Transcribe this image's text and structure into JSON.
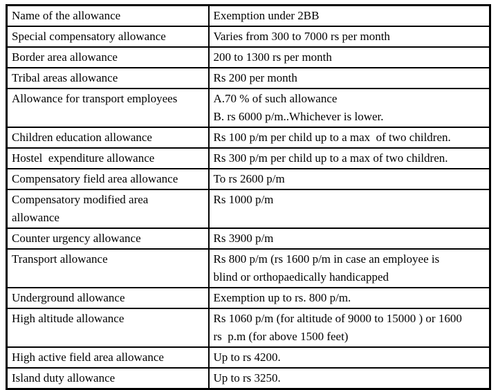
{
  "title": "Allowance exemption table",
  "colors": {
    "background": "#ffffff",
    "border": "#000000",
    "text": "#000000"
  },
  "table": {
    "headers": [
      "Name of the allowance",
      "Exemption under 2BB"
    ],
    "rows": [
      {
        "name": "Special compensatory allowance",
        "exemption": "Varies from 300 to 7000 rs per month"
      },
      {
        "name": "Border area allowance",
        "exemption": "200 to 1300 rs per month"
      },
      {
        "name": "Tribal areas allowance",
        "exemption": "Rs 200 per month"
      },
      {
        "name": "Allowance for transport employees",
        "exemption": "A.70 % of such allowance\nB. rs 6000 p/m..Whichever is lower."
      },
      {
        "name": "Children education allowance",
        "exemption": "Rs 100 p/m per child up to a max  of two children."
      },
      {
        "name": "Hostel  expenditure allowance",
        "exemption": "Rs 300 p/m per child up to a max of two children."
      },
      {
        "name": "Compensatory field area allowance",
        "exemption": "To rs 2600 p/m"
      },
      {
        "name": "Compensatory modified area\nallowance",
        "exemption": "Rs 1000 p/m"
      },
      {
        "name": "Counter urgency allowance",
        "exemption": "Rs 3900 p/m"
      },
      {
        "name": "Transport allowance",
        "exemption": "Rs 800 p/m (rs 1600 p/m in case an employee is\nblind or orthopaedically handicapped"
      },
      {
        "name": "Underground allowance",
        "exemption": "Exemption up to rs. 800 p/m."
      },
      {
        "name": "High altitude allowance",
        "exemption": "Rs 1060 p/m (for altitude of 9000 to 15000 ) or 1600\nrs  p.m (for above 1500 feet)"
      },
      {
        "name": "High active field area allowance",
        "exemption": "Up to rs 4200."
      },
      {
        "name": "Island duty allowance",
        "exemption": "Up to rs 3250."
      }
    ]
  }
}
